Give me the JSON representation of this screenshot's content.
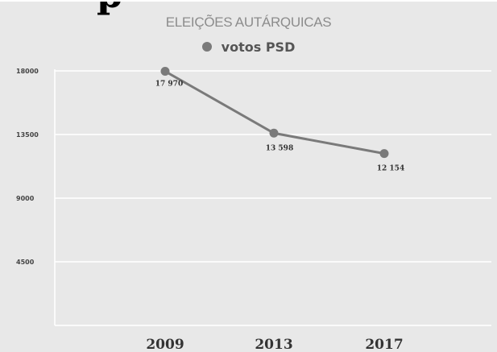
{
  "chart_data": {
    "type": "line",
    "title": "ELEIÇÕES AUTÁRQUICAS",
    "categories": [
      "2009",
      "2013",
      "2017"
    ],
    "series": [
      {
        "name": "votos PSD",
        "values": [
          17970,
          13598,
          12154
        ],
        "data_labels": [
          "17 970",
          "13 598",
          "12 154"
        ]
      }
    ],
    "yticks": [
      4500,
      9000,
      13500,
      18000
    ],
    "ytick_labels": [
      "4500",
      "9000",
      "13500",
      "18000"
    ],
    "ylim": [
      0,
      18000
    ],
    "xlabel": "",
    "ylabel": "",
    "grid": true,
    "legend": "top-center",
    "colors": {
      "series": "#7a7a7a",
      "background": "#e8e8e8",
      "grid": "#ffffff"
    }
  }
}
